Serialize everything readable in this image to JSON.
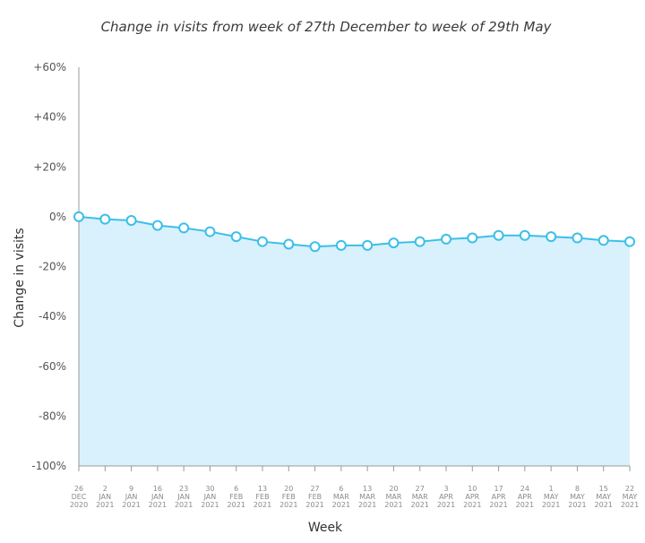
{
  "chart_data": {
    "type": "area",
    "title": "Change in visits from week of 27th December to week of 29th May",
    "xlabel": "Week",
    "ylabel": "Change in visits",
    "ylim": [
      -100,
      60
    ],
    "yticks": [
      60,
      40,
      20,
      0,
      -20,
      -40,
      -60,
      -80,
      -100
    ],
    "ytick_labels": [
      "+60%",
      "+40%",
      "+20%",
      "0%",
      "-20%",
      "-40%",
      "-60%",
      "-80%",
      "-100%"
    ],
    "categories": [
      [
        "26",
        "DEC",
        "2020"
      ],
      [
        "2",
        "JAN",
        "2021"
      ],
      [
        "9",
        "JAN",
        "2021"
      ],
      [
        "16",
        "JAN",
        "2021"
      ],
      [
        "23",
        "JAN",
        "2021"
      ],
      [
        "30",
        "JAN",
        "2021"
      ],
      [
        "6",
        "FEB",
        "2021"
      ],
      [
        "13",
        "FEB",
        "2021"
      ],
      [
        "20",
        "FEB",
        "2021"
      ],
      [
        "27",
        "FEB",
        "2021"
      ],
      [
        "6",
        "MAR",
        "2021"
      ],
      [
        "13",
        "MAR",
        "2021"
      ],
      [
        "20",
        "MAR",
        "2021"
      ],
      [
        "27",
        "MAR",
        "2021"
      ],
      [
        "3",
        "APR",
        "2021"
      ],
      [
        "10",
        "APR",
        "2021"
      ],
      [
        "17",
        "APR",
        "2021"
      ],
      [
        "24",
        "APR",
        "2021"
      ],
      [
        "1",
        "MAY",
        "2021"
      ],
      [
        "8",
        "MAY",
        "2021"
      ],
      [
        "15",
        "MAY",
        "2021"
      ],
      [
        "22",
        "MAY",
        "2021"
      ]
    ],
    "series": [
      {
        "name": "Change in visits",
        "values": [
          0,
          -1,
          -1.5,
          -3.5,
          -4.5,
          -6,
          -8,
          -10,
          -11,
          -12,
          -11.5,
          -11.5,
          -10.5,
          -10,
          -9,
          -8.5,
          -7.5,
          -7.5,
          -8,
          -8.5,
          -9.5,
          -10
        ]
      }
    ],
    "colors": {
      "line": "#3bbfe8",
      "fill": "#d9f1fc",
      "marker_fill": "#ffffff",
      "axis": "#999999"
    }
  }
}
